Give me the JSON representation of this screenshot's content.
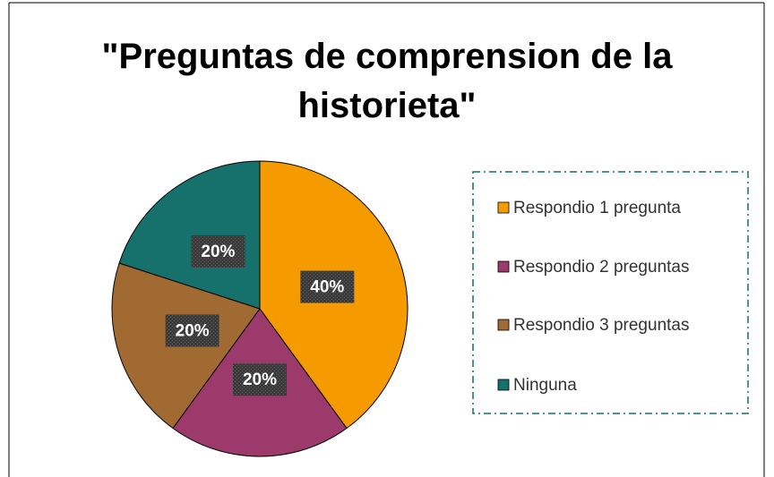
{
  "chart_data": {
    "type": "pie",
    "title": "\"Preguntas de comprension de la historieta\"",
    "categories": [
      "Respondio 1 pregunta",
      "Respondio 2 preguntas",
      "Respondio 3 preguntas",
      "Ninguna"
    ],
    "values": [
      40,
      20,
      20,
      20
    ],
    "value_labels": [
      "40%",
      "20%",
      "20%",
      "20%"
    ],
    "colors": [
      "#f59b00",
      "#9c3a6c",
      "#a06a32",
      "#16706b"
    ],
    "legend": "right"
  }
}
